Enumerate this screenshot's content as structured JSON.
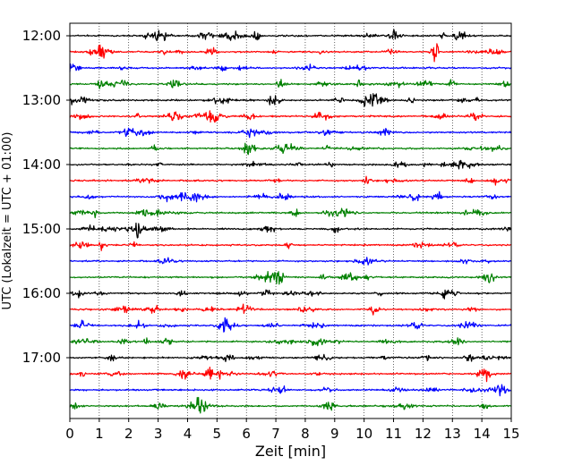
{
  "chart_data": {
    "type": "line",
    "title": "",
    "xlabel": "Zeit  [min]",
    "ylabel": "UTC (Lokalzeit = UTC + 01:00)",
    "xlim": [
      0,
      15
    ],
    "x_ticks": [
      0,
      1,
      2,
      3,
      4,
      5,
      6,
      7,
      8,
      9,
      10,
      11,
      12,
      13,
      14,
      15
    ],
    "x_tick_labels": [
      "0",
      "1",
      "2",
      "3",
      "4",
      "5",
      "6",
      "7",
      "8",
      "9",
      "10",
      "11",
      "12",
      "13",
      "14",
      "15"
    ],
    "y_tick_labels": [
      "12:00",
      "13:00",
      "14:00",
      "15:00",
      "16:00",
      "17:00"
    ],
    "grid": "vertical-dotted",
    "trace_interval_minutes": 15,
    "start_time": "12:00",
    "trace_count": 24,
    "trace_colors": [
      "#000000",
      "#ff0000",
      "#0000ff",
      "#008000"
    ]
  }
}
